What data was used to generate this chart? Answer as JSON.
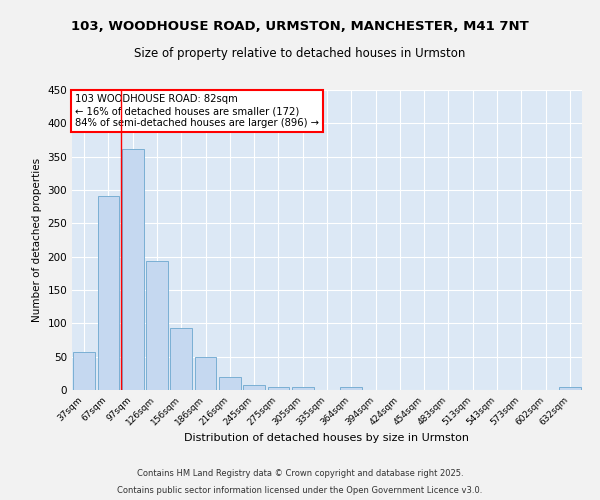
{
  "title_line1": "103, WOODHOUSE ROAD, URMSTON, MANCHESTER, M41 7NT",
  "title_line2": "Size of property relative to detached houses in Urmston",
  "xlabel": "Distribution of detached houses by size in Urmston",
  "ylabel": "Number of detached properties",
  "bar_labels": [
    "37sqm",
    "67sqm",
    "97sqm",
    "126sqm",
    "156sqm",
    "186sqm",
    "216sqm",
    "245sqm",
    "275sqm",
    "305sqm",
    "335sqm",
    "364sqm",
    "394sqm",
    "424sqm",
    "454sqm",
    "483sqm",
    "513sqm",
    "543sqm",
    "573sqm",
    "602sqm",
    "632sqm"
  ],
  "bar_values": [
    57,
    291,
    362,
    193,
    93,
    50,
    20,
    8,
    5,
    5,
    0,
    4,
    0,
    0,
    0,
    0,
    0,
    0,
    0,
    0,
    4
  ],
  "bar_color": "#c5d8f0",
  "bar_edge_color": "#7aafd4",
  "background_color": "#dce8f5",
  "grid_color": "#ffffff",
  "red_line_x": 1.5,
  "annotation_title": "103 WOODHOUSE ROAD: 82sqm",
  "annotation_line1": "← 16% of detached houses are smaller (172)",
  "annotation_line2": "84% of semi-detached houses are larger (896) →",
  "footer_line1": "Contains HM Land Registry data © Crown copyright and database right 2025.",
  "footer_line2": "Contains public sector information licensed under the Open Government Licence v3.0.",
  "ylim": [
    0,
    450
  ],
  "yticks": [
    0,
    50,
    100,
    150,
    200,
    250,
    300,
    350,
    400,
    450
  ],
  "fig_bg": "#f2f2f2"
}
